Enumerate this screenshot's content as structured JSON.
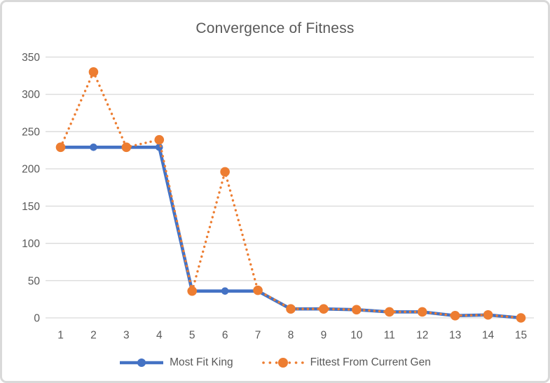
{
  "chart_data": {
    "type": "line",
    "title": "Convergence of Fitness",
    "xlabel": "",
    "ylabel": "",
    "x": [
      1,
      2,
      3,
      4,
      5,
      6,
      7,
      8,
      9,
      10,
      11,
      12,
      13,
      14,
      15
    ],
    "series": [
      {
        "name": "Most Fit King",
        "color": "#4472C4",
        "line_style": "solid",
        "marker": "circle",
        "values": [
          229,
          229,
          229,
          229,
          36,
          36,
          36,
          12,
          12,
          11,
          8,
          8,
          3,
          4,
          0
        ]
      },
      {
        "name": "Fittest From Current Gen",
        "color": "#ED7D31",
        "line_style": "dotted",
        "marker": "circle",
        "values": [
          229,
          330,
          229,
          239,
          36,
          196,
          37,
          12,
          12,
          11,
          8,
          8,
          3,
          4,
          0
        ]
      }
    ],
    "ylim": [
      0,
      350
    ],
    "yticks": [
      0,
      50,
      100,
      150,
      200,
      250,
      300,
      350
    ],
    "grid": true,
    "legend_position": "bottom",
    "colors": {
      "text": "#595959",
      "grid": "#D9D9D9",
      "background": "#FFFFFF"
    }
  }
}
